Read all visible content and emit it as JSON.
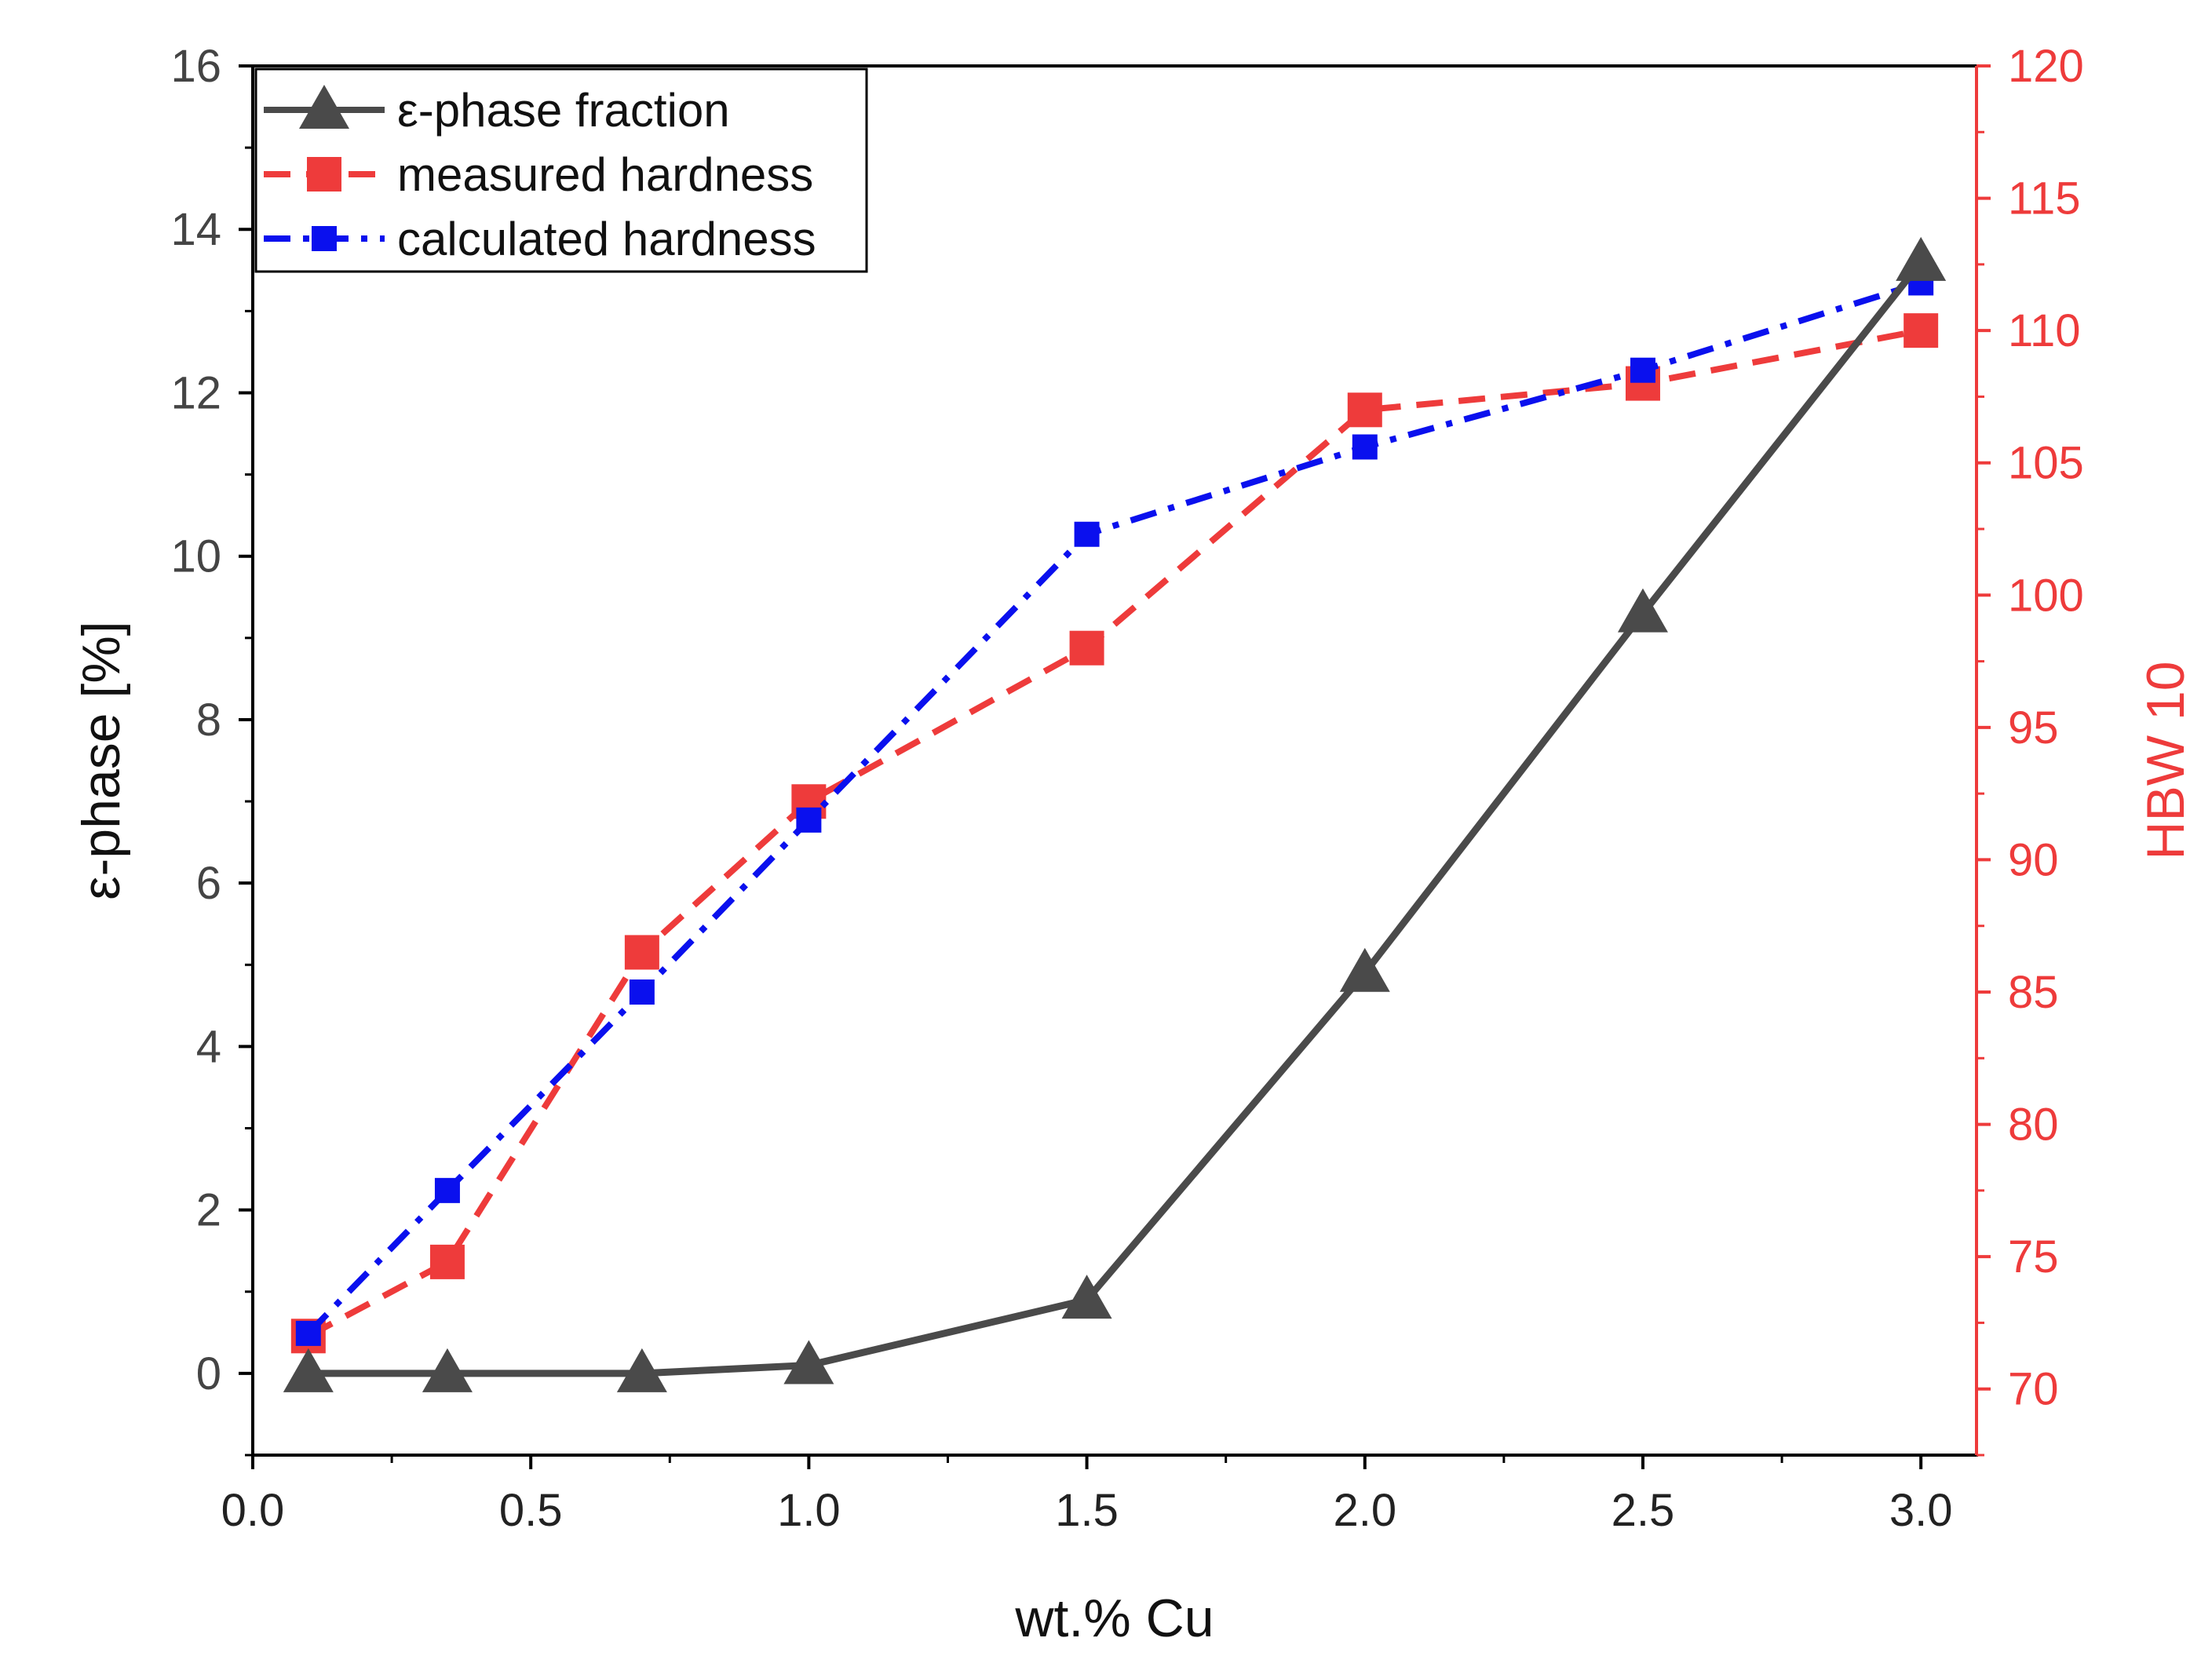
{
  "chart_data": {
    "type": "line",
    "title": "",
    "xlabel": "wt.% Cu",
    "ylabel": "ε-phase [%]",
    "y2label": "HBW 10",
    "xlim": [
      0.0,
      3.1
    ],
    "ylim": [
      -1.0,
      16.0
    ],
    "y2lim": [
      67.5,
      120.0
    ],
    "xticks": [
      "0.0",
      "0.5",
      "1.0",
      "1.5",
      "2.0",
      "2.5",
      "3.0"
    ],
    "yticks": [
      "0",
      "2",
      "4",
      "6",
      "8",
      "10",
      "12",
      "14",
      "16"
    ],
    "y2ticks": [
      "70",
      "75",
      "80",
      "85",
      "90",
      "95",
      "100",
      "105",
      "110",
      "115",
      "120"
    ],
    "legend_position": "top-left",
    "colors": {
      "epsilon": "#4a4a4a",
      "measured": "#ee3b3b",
      "calculated": "#0a10ee",
      "right_axis": "#ee3b3b",
      "left_axis": "#000000"
    },
    "series": [
      {
        "name": "ε-phase fraction",
        "axis": "left",
        "marker": "triangle",
        "dash": "solid",
        "x": [
          0.1,
          0.35,
          0.7,
          1.0,
          1.5,
          2.0,
          2.5,
          3.0
        ],
        "values": [
          0.0,
          0.0,
          0.0,
          0.1,
          0.9,
          4.9,
          9.3,
          13.6
        ]
      },
      {
        "name": "measured hardness",
        "axis": "right",
        "marker": "square",
        "dash": "dash",
        "x": [
          0.1,
          0.35,
          0.7,
          1.0,
          1.5,
          2.0,
          2.5,
          3.0
        ],
        "values": [
          72.0,
          74.8,
          86.5,
          92.2,
          98.0,
          107.0,
          108.0,
          110.0
        ]
      },
      {
        "name": "calculated hardness",
        "axis": "right",
        "marker": "square-small",
        "dash": "dashdot",
        "x": [
          0.1,
          0.35,
          0.7,
          1.0,
          1.5,
          2.0,
          2.5,
          3.0
        ],
        "values": [
          72.1,
          77.5,
          85.0,
          91.5,
          102.3,
          105.6,
          108.5,
          111.8
        ]
      }
    ]
  }
}
